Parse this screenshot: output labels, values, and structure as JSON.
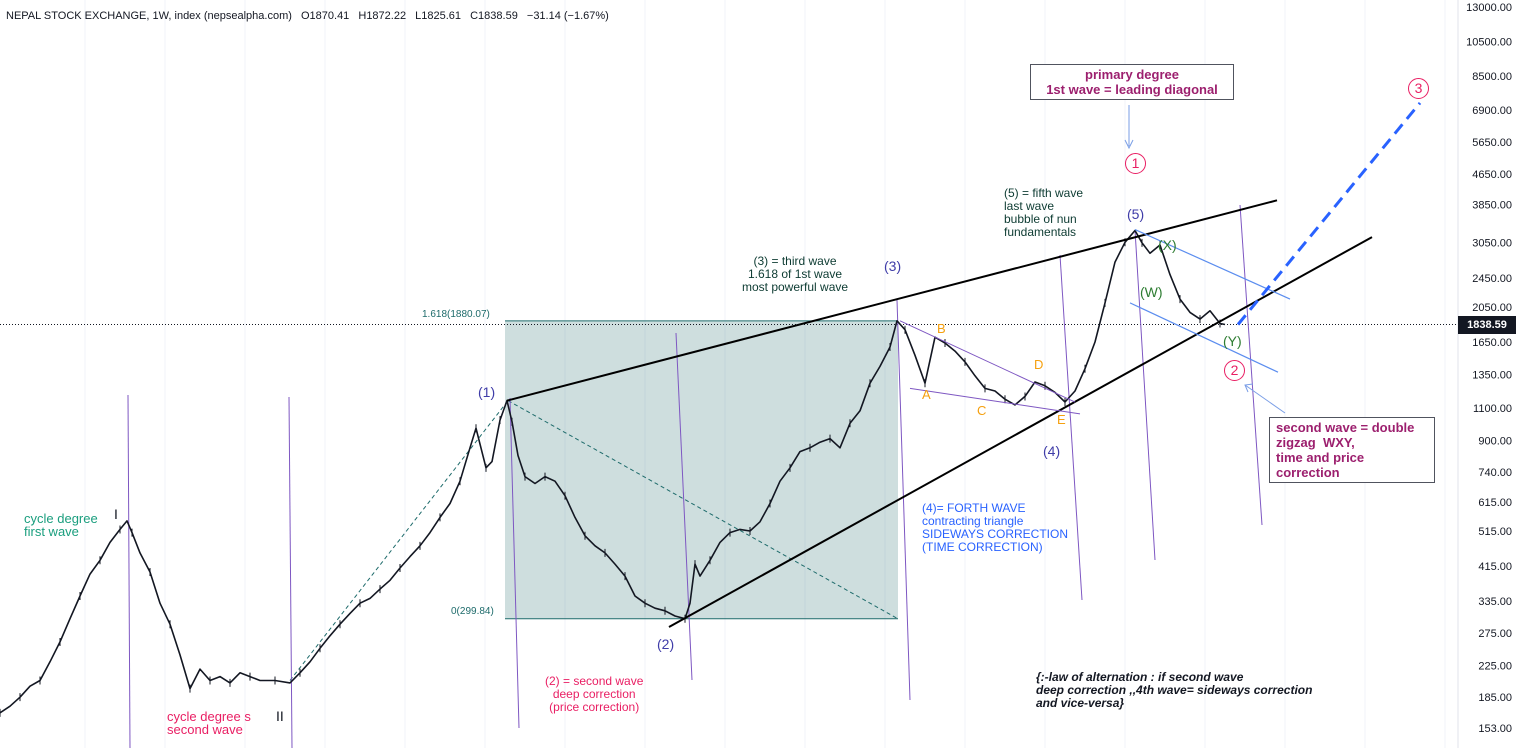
{
  "header": {
    "symbol": "NEPAL STOCK EXCHANGE, 1W, index (nepsealpha.com)",
    "open": "O1870.41",
    "high": "H1872.22",
    "low": "L1825.61",
    "close": "C1838.59",
    "change": "−31.14 (−1.67%)"
  },
  "price_axis": {
    "ticks": [
      "13000.00",
      "10500.00",
      "8500.00",
      "6900.00",
      "5650.00",
      "4650.00",
      "3850.00",
      "3050.00",
      "2450.00",
      "2050.00",
      "1650.00",
      "1350.00",
      "1100.00",
      "900.00",
      "740.00",
      "615.00",
      "515.00",
      "415.00",
      "335.00",
      "275.00",
      "225.00",
      "185.00",
      "153.00"
    ],
    "current_price": "1838.59"
  },
  "fib": {
    "top_label": "1.618(1880.07)",
    "bottom_label": "0(299.84)"
  },
  "annotations": {
    "cycle_first": "cycle degree\nfirst wave",
    "cycle_roman_1": "I",
    "cycle_second": "cycle degree s\nsecond wave",
    "cycle_roman_2": "II",
    "w1": "(1)",
    "w2": "(2)",
    "w3": "(3)",
    "w4": "(4)",
    "w5": "(5)",
    "w2_text": "(2) = second wave\ndeep correction\n(price correction)",
    "w3_text": "(3) = third wave\n1.618 of 1st wave\nmost powerful wave",
    "w4_text": "(4)= FORTH WAVE\ncontracting triangle\nSIDEWAYS CORRECTION\n(TIME CORRECTION)",
    "w5_text": "(5) = fifth wave\nlast wave\nbubble of nun\nfundamentals",
    "tri_A": "A",
    "tri_B": "B",
    "tri_C": "C",
    "tri_D": "D",
    "tri_E": "E",
    "wxy_X": "(X)",
    "wxy_W": "(W)",
    "wxy_Y": "(Y)",
    "primary_box": "primary degree\n1st wave = leading diagonal",
    "second_box": "second wave = double\nzigzag  WXY,\ntime and price\ncorrection",
    "circ1": "1",
    "circ2": "2",
    "circ3": "3",
    "law": "{:-law of alternation : if second wave\ndeep correction ,,4th wave= sideways correction\nand vice-versa}"
  },
  "colors": {
    "candles": "#131722",
    "fib_fill": "#1e6b6b",
    "teal_text": "#1a9e7e",
    "wave_purple": "#3f3ca8",
    "primary_pink": "#e91e63",
    "maroon": "#9c1f6e",
    "orange": "#f5a00f",
    "blue_text": "#2962ff",
    "green_text": "#2e7d32",
    "dark_green_text": "#0d3b32",
    "vline": "#7e57c2"
  },
  "chart_data": {
    "type": "line",
    "title": "NEPAL STOCK EXCHANGE, 1W, index (nepsealpha.com)",
    "scale": "log",
    "ylim": [
      150,
      13000
    ],
    "series": [
      {
        "points": [
          [
            0,
            168
          ],
          [
            10,
            175
          ],
          [
            20,
            185
          ],
          [
            30,
            198
          ],
          [
            40,
            205
          ],
          [
            50,
            230
          ],
          [
            60,
            260
          ],
          [
            70,
            300
          ],
          [
            80,
            345
          ],
          [
            90,
            395
          ],
          [
            100,
            430
          ],
          [
            110,
            480
          ],
          [
            120,
            520
          ],
          [
            127,
            548
          ],
          [
            132,
            510
          ],
          [
            140,
            450
          ],
          [
            150,
            400
          ],
          [
            160,
            330
          ],
          [
            170,
            290
          ],
          [
            180,
            240
          ],
          [
            190,
            195
          ],
          [
            200,
            220
          ],
          [
            210,
            205
          ],
          [
            220,
            210
          ],
          [
            230,
            202
          ],
          [
            240,
            215
          ],
          [
            250,
            210
          ],
          [
            260,
            205
          ],
          [
            275,
            205
          ],
          [
            290,
            202
          ],
          [
            300,
            215
          ],
          [
            310,
            230
          ],
          [
            320,
            250
          ],
          [
            330,
            270
          ],
          [
            340,
            290
          ],
          [
            350,
            310
          ],
          [
            360,
            330
          ],
          [
            370,
            340
          ],
          [
            380,
            360
          ],
          [
            390,
            380
          ],
          [
            400,
            410
          ],
          [
            410,
            440
          ],
          [
            420,
            470
          ],
          [
            430,
            510
          ],
          [
            440,
            560
          ],
          [
            450,
            610
          ],
          [
            460,
            700
          ],
          [
            470,
            860
          ],
          [
            476,
            970
          ],
          [
            480,
            880
          ],
          [
            486,
            760
          ],
          [
            492,
            790
          ],
          [
            500,
            1020
          ],
          [
            507,
            1150
          ],
          [
            512,
            1010
          ],
          [
            518,
            820
          ],
          [
            525,
            720
          ],
          [
            535,
            690
          ],
          [
            545,
            720
          ],
          [
            555,
            700
          ],
          [
            565,
            640
          ],
          [
            575,
            560
          ],
          [
            585,
            500
          ],
          [
            595,
            470
          ],
          [
            605,
            450
          ],
          [
            615,
            420
          ],
          [
            625,
            390
          ],
          [
            635,
            345
          ],
          [
            645,
            330
          ],
          [
            655,
            320
          ],
          [
            665,
            315
          ],
          [
            675,
            305
          ],
          [
            685,
            300
          ],
          [
            690,
            330
          ],
          [
            695,
            420
          ],
          [
            700,
            390
          ],
          [
            710,
            430
          ],
          [
            720,
            480
          ],
          [
            730,
            510
          ],
          [
            740,
            520
          ],
          [
            750,
            515
          ],
          [
            760,
            545
          ],
          [
            770,
            610
          ],
          [
            780,
            700
          ],
          [
            790,
            760
          ],
          [
            800,
            840
          ],
          [
            810,
            860
          ],
          [
            820,
            890
          ],
          [
            830,
            910
          ],
          [
            840,
            860
          ],
          [
            850,
            1000
          ],
          [
            860,
            1080
          ],
          [
            870,
            1280
          ],
          [
            880,
            1420
          ],
          [
            890,
            1600
          ],
          [
            897,
            1880
          ],
          [
            905,
            1780
          ],
          [
            915,
            1520
          ],
          [
            925,
            1280
          ],
          [
            935,
            1700
          ],
          [
            945,
            1640
          ],
          [
            955,
            1560
          ],
          [
            965,
            1460
          ],
          [
            975,
            1340
          ],
          [
            985,
            1240
          ],
          [
            995,
            1220
          ],
          [
            1005,
            1160
          ],
          [
            1015,
            1120
          ],
          [
            1025,
            1180
          ],
          [
            1035,
            1290
          ],
          [
            1045,
            1260
          ],
          [
            1055,
            1210
          ],
          [
            1065,
            1140
          ],
          [
            1075,
            1220
          ],
          [
            1085,
            1400
          ],
          [
            1095,
            1650
          ],
          [
            1105,
            2100
          ],
          [
            1115,
            2700
          ],
          [
            1125,
            3050
          ],
          [
            1135,
            3280
          ],
          [
            1142,
            3040
          ],
          [
            1150,
            2850
          ],
          [
            1160,
            3000
          ],
          [
            1170,
            2500
          ],
          [
            1180,
            2150
          ],
          [
            1190,
            1980
          ],
          [
            1200,
            1900
          ],
          [
            1210,
            2000
          ],
          [
            1220,
            1850
          ],
          [
            1225,
            1838
          ]
        ]
      }
    ]
  }
}
